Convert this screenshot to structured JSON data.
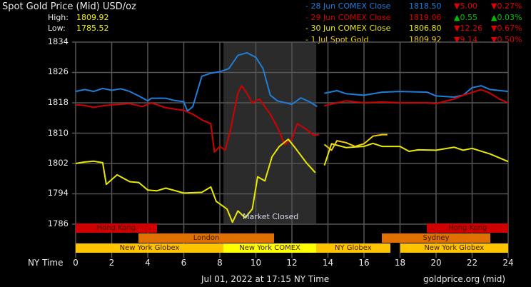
{
  "header": {
    "title": "Spot Gold Price (Mid) USD/oz",
    "high_label": "High:",
    "high_value": "1809.92",
    "low_label": "Low:",
    "low_value": "1785.52"
  },
  "legend": [
    {
      "name": "- 28 Jun COMEX Close",
      "price": "1818.50",
      "change": "▼5.00",
      "pct": "▼0.27%",
      "color": "#1e7ed8",
      "dir": "down"
    },
    {
      "name": "- 29 Jun COMEX Close",
      "price": "1819.06",
      "change": "▲0.55",
      "pct": "▲0.03%",
      "color": "#d40000",
      "dir": "up"
    },
    {
      "name": "- 30 Jun COMEX Close",
      "price": "1806.80",
      "change": "▼12.26",
      "pct": "▼0.67%",
      "color": "#e8e800",
      "dir": "down"
    },
    {
      "name": "- 1 Jul Spot Gold",
      "price": "1809.92",
      "change": "▼9.14",
      "pct": "▼0.50%",
      "color": "#f0d000",
      "dir": "down"
    }
  ],
  "axis": {
    "y_ticks": [
      "1834",
      "1826",
      "1818",
      "1810",
      "1802",
      "1794",
      "1786"
    ],
    "x_title": "NY Time",
    "x_ticks": [
      "0",
      "2",
      "4",
      "6",
      "8",
      "10",
      "12",
      "14",
      "16",
      "18",
      "20",
      "22",
      "24"
    ]
  },
  "annotation": {
    "market_closed": "Market Closed"
  },
  "sessions": {
    "row1": [
      {
        "label": "Hong Kong",
        "start": 0,
        "end": 4.5,
        "color": "#d00000"
      },
      {
        "label": "Hong Kong",
        "start": 19.5,
        "end": 24,
        "color": "#d00000"
      }
    ],
    "row2": [
      {
        "label": "London",
        "start": 3.5,
        "end": 11.0,
        "color": "#e07000"
      },
      {
        "label": "Sydney",
        "start": 17.0,
        "end": 23.0,
        "color": "#e07000"
      }
    ],
    "row3": [
      {
        "label": "New York Globex",
        "start": 0,
        "end": 8.2,
        "color": "#ffc400"
      },
      {
        "label": "New York COMEX",
        "start": 8.2,
        "end": 13.35,
        "color": "#ffff00"
      },
      {
        "label": "NY Globex",
        "start": 13.35,
        "end": 17.45,
        "color": "#ffc400"
      },
      {
        "label": "New York Globex",
        "start": 18.0,
        "end": 24,
        "color": "#ffc400"
      }
    ]
  },
  "footer": {
    "timestamp": "Jul 01, 2022 at 17:15 NY Time",
    "source": "goldprice.org (mid)"
  },
  "chart_data": {
    "type": "line",
    "title": "Spot Gold Price (Mid) USD/oz",
    "xlabel": "NY Time",
    "ylabel": "USD/oz",
    "xlim": [
      0,
      24
    ],
    "ylim": [
      1784,
      1834
    ],
    "grid": true,
    "legend_position": "top-right",
    "market_closed_range": [
      8.2,
      13.35
    ],
    "series": [
      {
        "name": "28 Jun COMEX Close",
        "color": "#1e7ed8",
        "points": [
          [
            0,
            1821
          ],
          [
            0.5,
            1821.5
          ],
          [
            1,
            1821
          ],
          [
            1.5,
            1821.8
          ],
          [
            2,
            1821.3
          ],
          [
            2.5,
            1821.7
          ],
          [
            3,
            1821
          ],
          [
            3.5,
            1819.8
          ],
          [
            4,
            1818.5
          ],
          [
            4.2,
            1819.2
          ],
          [
            5,
            1819.2
          ],
          [
            5.5,
            1818.6
          ],
          [
            6,
            1818.3
          ],
          [
            6.2,
            1815.8
          ],
          [
            6.5,
            1817
          ],
          [
            7,
            1825
          ],
          [
            7.5,
            1825.8
          ],
          [
            8,
            1826.2
          ],
          [
            8.5,
            1827
          ],
          [
            9,
            1830.5
          ],
          [
            9.5,
            1831.2
          ],
          [
            10,
            1830
          ],
          [
            10.4,
            1827
          ],
          [
            10.8,
            1820
          ],
          [
            11.2,
            1818.5
          ],
          [
            12,
            1817.6
          ],
          [
            12.5,
            1819.3
          ],
          [
            13,
            1818.2
          ],
          [
            13.4,
            1817
          ],
          [
            13.8,
            1820.5
          ],
          [
            14.5,
            1821.2
          ],
          [
            15,
            1820.4
          ],
          [
            16,
            1820
          ],
          [
            17,
            1820.8
          ],
          [
            18,
            1821
          ],
          [
            19.5,
            1820.8
          ],
          [
            20,
            1819.8
          ],
          [
            21,
            1819.5
          ],
          [
            21.5,
            1820
          ],
          [
            22,
            1822
          ],
          [
            22.5,
            1822.5
          ],
          [
            23,
            1821.5
          ],
          [
            24,
            1821
          ]
        ]
      },
      {
        "name": "29 Jun COMEX Close",
        "color": "#d40000",
        "points": [
          [
            0,
            1817.5
          ],
          [
            0.5,
            1817.3
          ],
          [
            1,
            1816.8
          ],
          [
            1.5,
            1817.2
          ],
          [
            2,
            1817.5
          ],
          [
            3,
            1817.8
          ],
          [
            3.7,
            1817
          ],
          [
            4.2,
            1818
          ],
          [
            5,
            1816.7
          ],
          [
            6,
            1816
          ],
          [
            6.5,
            1815
          ],
          [
            7,
            1813.5
          ],
          [
            7.5,
            1812.5
          ],
          [
            7.7,
            1805
          ],
          [
            8,
            1806.5
          ],
          [
            8.3,
            1805.5
          ],
          [
            8.6,
            1811
          ],
          [
            9,
            1820.5
          ],
          [
            9.2,
            1822.5
          ],
          [
            9.5,
            1820.5
          ],
          [
            9.8,
            1818
          ],
          [
            10.2,
            1819
          ],
          [
            10.8,
            1815
          ],
          [
            11.2,
            1811.5
          ],
          [
            11.6,
            1807
          ],
          [
            12,
            1808.5
          ],
          [
            12.3,
            1812.5
          ],
          [
            12.8,
            1811
          ],
          [
            13.2,
            1809.5
          ],
          [
            13.5,
            1809.6
          ],
          [
            13.8,
            1817.2
          ],
          [
            14.5,
            1818
          ],
          [
            15,
            1818.5
          ],
          [
            16,
            1818
          ],
          [
            17,
            1818.2
          ],
          [
            18,
            1818
          ],
          [
            19.5,
            1818
          ],
          [
            20,
            1817.8
          ],
          [
            21,
            1819
          ],
          [
            21.5,
            1820
          ],
          [
            22.5,
            1821.5
          ],
          [
            23,
            1820.5
          ],
          [
            23.5,
            1819
          ],
          [
            24,
            1818
          ]
        ]
      },
      {
        "name": "30 Jun COMEX Close",
        "color": "#e8e800",
        "points": [
          [
            0,
            1802
          ],
          [
            0.5,
            1802.4
          ],
          [
            1,
            1802.6
          ],
          [
            1.5,
            1802.2
          ],
          [
            1.7,
            1796.5
          ],
          [
            2.3,
            1799
          ],
          [
            3,
            1797.2
          ],
          [
            3.5,
            1797
          ],
          [
            4,
            1795
          ],
          [
            4.5,
            1794.8
          ],
          [
            5,
            1795.5
          ],
          [
            6,
            1794.2
          ],
          [
            7,
            1794.4
          ],
          [
            7.5,
            1795.8
          ],
          [
            7.8,
            1792
          ],
          [
            8.4,
            1790
          ],
          [
            8.7,
            1786.5
          ],
          [
            9,
            1789.5
          ],
          [
            9.4,
            1787.7
          ],
          [
            9.8,
            1790
          ],
          [
            10.1,
            1798.5
          ],
          [
            10.5,
            1797.4
          ],
          [
            10.9,
            1803.8
          ],
          [
            11.3,
            1806.5
          ],
          [
            11.8,
            1808.4
          ],
          [
            12.2,
            1806
          ],
          [
            12.8,
            1802.2
          ],
          [
            13.3,
            1799.6
          ],
          [
            13.8,
            1801.5
          ],
          [
            14.2,
            1807.2
          ],
          [
            15,
            1806.2
          ],
          [
            16,
            1806.5
          ],
          [
            16.5,
            1807.3
          ],
          [
            17,
            1806.5
          ],
          [
            17.5,
            1806.5
          ],
          [
            18,
            1806.5
          ],
          [
            18.5,
            1805.2
          ],
          [
            19,
            1805.6
          ],
          [
            20,
            1805.5
          ],
          [
            21,
            1806.3
          ],
          [
            21.5,
            1805.5
          ],
          [
            22,
            1806
          ],
          [
            23,
            1804.5
          ],
          [
            24,
            1802.5
          ]
        ]
      },
      {
        "name": "1 Jul Spot Gold",
        "color": "#f0d000",
        "points": [
          [
            13.8,
            1807
          ],
          [
            14.2,
            1805.5
          ],
          [
            14.5,
            1808
          ],
          [
            15,
            1807.5
          ],
          [
            15.5,
            1806.5
          ],
          [
            16,
            1807.2
          ],
          [
            16.5,
            1809.2
          ],
          [
            17,
            1809.6
          ],
          [
            17.3,
            1809.6
          ]
        ]
      }
    ]
  }
}
